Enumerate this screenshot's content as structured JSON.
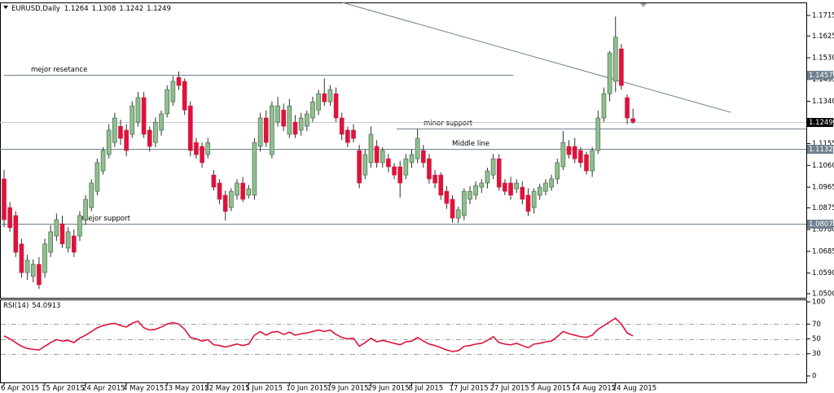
{
  "chart_data": [
    {
      "type": "candlestick",
      "title": "EURUSD,Daily",
      "categories": [
        "6 Apr 2015",
        null,
        null,
        null,
        null,
        null,
        null,
        "15 Apr 2015",
        null,
        null,
        null,
        null,
        null,
        null,
        "24 Apr 2015",
        null,
        null,
        null,
        null,
        null,
        null,
        "4 May 2015",
        null,
        null,
        null,
        null,
        null,
        null,
        "13 May 2015",
        null,
        null,
        null,
        null,
        null,
        null,
        "22 May 2015",
        null,
        null,
        null,
        null,
        null,
        null,
        "1 Jun 2015",
        null,
        null,
        null,
        null,
        null,
        null,
        "10 Jun 2015",
        null,
        null,
        null,
        null,
        null,
        null,
        "19 Jun 2015",
        null,
        null,
        null,
        null,
        null,
        null,
        "29 Jun 2015",
        null,
        null,
        null,
        null,
        null,
        null,
        "8 Jul 2015",
        null,
        null,
        null,
        null,
        null,
        null,
        "17 Jul 2015",
        null,
        null,
        null,
        null,
        null,
        null,
        "27 Jul 2015",
        null,
        null,
        null,
        null,
        null,
        null,
        "5 Aug 2015",
        null,
        null,
        null,
        null,
        null,
        null,
        "14 Aug 2015",
        null,
        null,
        null,
        null,
        null,
        null,
        "24 Aug 2015",
        null,
        null,
        null
      ],
      "open": [
        1.1001,
        1.0876,
        1.0841,
        1.0717,
        1.0592,
        1.0575,
        1.0628,
        1.0592,
        1.0681,
        1.0752,
        1.0805,
        1.0699,
        1.0752,
        1.0752,
        1.0823,
        1.0876,
        1.0947,
        1.1036,
        1.1107,
        1.116,
        1.1231,
        1.1214,
        1.1196,
        1.1249,
        1.1356,
        1.1214,
        1.116,
        1.1214,
        1.1285,
        1.1338,
        1.1444,
        1.1427,
        1.132,
        1.116,
        1.1143,
        1.1107,
        1.1018,
        1.0983,
        1.093,
        1.0876,
        1.093,
        1.0983,
        1.093,
        1.093,
        1.1143,
        1.1267,
        1.1107,
        1.1249,
        1.1302,
        1.1196,
        1.1249,
        1.1214,
        1.1231,
        1.1267,
        1.1302,
        1.1373,
        1.1338,
        1.1373,
        1.1267,
        1.1214,
        1.1214,
        1.1125,
        1.1018,
        1.1072,
        1.1143,
        1.1072,
        1.1089,
        1.1054,
        1.1054,
        1.1018,
        1.1072,
        1.1089,
        1.1125,
        1.1089,
        1.1018,
        1.1018,
        1.0947,
        1.0912,
        1.083,
        1.0841,
        1.0912,
        1.093,
        1.0965,
        1.0983,
        1.1018,
        1.1089,
        1.0983,
        1.0983,
        1.0958,
        1.0965,
        1.093,
        1.0876,
        1.093,
        1.0947,
        1.0965,
        1.1001,
        1.1054,
        1.1143,
        1.1143,
        1.1125,
        1.1107,
        1.1036,
        1.1125,
        1.1267,
        1.1373,
        1.1427,
        1.1569,
        1.1356,
        1.1264
      ],
      "high": [
        1.104,
        1.09,
        1.086,
        1.074,
        1.067,
        1.065,
        1.066,
        1.074,
        1.08,
        1.085,
        1.084,
        1.079,
        1.078,
        1.086,
        1.093,
        1.1,
        1.109,
        1.114,
        1.124,
        1.129,
        1.126,
        1.124,
        1.134,
        1.138,
        1.138,
        1.123,
        1.127,
        1.13,
        1.141,
        1.145,
        1.147,
        1.144,
        1.134,
        1.118,
        1.116,
        1.118,
        1.104,
        1.1,
        1.095,
        1.096,
        1.1,
        1.101,
        1.0975,
        1.118,
        1.129,
        1.13,
        1.134,
        1.136,
        1.133,
        1.135,
        1.128,
        1.129,
        1.13,
        1.136,
        1.139,
        1.144,
        1.141,
        1.14,
        1.129,
        1.123,
        1.124,
        1.115,
        1.113,
        1.123,
        1.117,
        1.114,
        1.111,
        1.107,
        1.108,
        1.111,
        1.113,
        1.122,
        1.115,
        1.111,
        1.104,
        1.103,
        1.097,
        1.093,
        1.088,
        1.096,
        1.097,
        1.099,
        1.1,
        1.105,
        1.111,
        1.111,
        1.1,
        1.101,
        1.1,
        1.099,
        1.096,
        1.096,
        1.098,
        1.1,
        1.102,
        1.109,
        1.121,
        1.117,
        1.118,
        1.114,
        1.112,
        1.114,
        1.13,
        1.14,
        1.156,
        1.171,
        1.159,
        1.137,
        1.1308
      ],
      "low": [
        1.079,
        1.077,
        1.066,
        1.057,
        1.056,
        1.055,
        1.0521,
        1.057,
        1.066,
        1.073,
        1.07,
        1.068,
        1.066,
        1.073,
        1.08,
        1.086,
        1.093,
        1.102,
        1.109,
        1.114,
        1.115,
        1.11,
        1.118,
        1.123,
        1.118,
        1.112,
        1.114,
        1.119,
        1.127,
        1.132,
        1.139,
        1.128,
        1.11,
        1.109,
        1.105,
        1.109,
        1.095,
        1.089,
        1.082,
        1.086,
        1.091,
        1.09,
        1.0915,
        1.091,
        1.112,
        1.114,
        1.109,
        1.123,
        1.121,
        1.118,
        1.118,
        1.119,
        1.121,
        1.125,
        1.128,
        1.132,
        1.132,
        1.125,
        1.117,
        1.114,
        1.116,
        1.096,
        1.1,
        1.105,
        1.105,
        1.105,
        1.103,
        1.1,
        1.092,
        1.1,
        1.105,
        1.107,
        1.105,
        1.098,
        1.096,
        1.091,
        1.087,
        1.081,
        1.0808,
        1.082,
        1.089,
        1.091,
        1.094,
        1.096,
        1.1,
        1.095,
        1.093,
        1.091,
        1.094,
        1.089,
        1.084,
        1.085,
        1.091,
        1.093,
        1.095,
        1.098,
        1.104,
        1.109,
        1.107,
        1.105,
        1.102,
        1.101,
        1.111,
        1.125,
        1.134,
        1.138,
        1.139,
        1.124,
        1.1242
      ],
      "close": [
        1.0823,
        1.0788,
        1.0681,
        1.0592,
        1.0646,
        1.0628,
        1.0539,
        1.0717,
        1.077,
        1.0823,
        1.0717,
        1.077,
        1.0681,
        1.0841,
        1.0912,
        1.0983,
        1.1072,
        1.1125,
        1.1214,
        1.1267,
        1.1178,
        1.1125,
        1.132,
        1.1356,
        1.1196,
        1.1143,
        1.1249,
        1.1285,
        1.1391,
        1.1427,
        1.1409,
        1.1302,
        1.1125,
        1.1107,
        1.1072,
        1.116,
        1.0965,
        1.0912,
        1.0859,
        1.0947,
        1.0983,
        1.0912,
        1.0958,
        1.116,
        1.1267,
        1.116,
        1.132,
        1.132,
        1.1231,
        1.132,
        1.1196,
        1.1267,
        1.1285,
        1.1338,
        1.1373,
        1.1338,
        1.1391,
        1.1267,
        1.1196,
        1.116,
        1.1178,
        1.0983,
        1.1107,
        1.1196,
        1.1072,
        1.1125,
        1.1054,
        1.1018,
        1.0983,
        1.1089,
        1.1107,
        1.1178,
        1.1072,
        1.1001,
        1.0983,
        1.093,
        1.0894,
        1.083,
        1.0866,
        1.0947,
        1.0947,
        1.0972,
        1.0983,
        1.1036,
        1.1089,
        1.0965,
        1.0947,
        1.093,
        1.0983,
        1.0912,
        1.0859,
        1.0947,
        1.0965,
        1.0983,
        1.1001,
        1.1072,
        1.116,
        1.1107,
        1.1089,
        1.1072,
        1.1036,
        1.1125,
        1.1267,
        1.1373,
        1.1551,
        1.162,
        1.1409,
        1.1267,
        1.1249
      ],
      "up_color": "#8fbf8f",
      "down_color": "#dc143c",
      "wick_color": "#2f2f2f",
      "ylim": [
        1.0482,
        1.1768
      ],
      "yticks": [
        1.1715,
        1.1625,
        {
          "value": 1.153,
          "label": "1.1530"
        },
        1.1435,
        {
          "value": 1.134,
          "label": "1.1340"
        },
        {
          "value": 1.125,
          "label": "1.1250"
        },
        1.1155,
        {
          "value": 1.106,
          "label": "1.1060"
        },
        1.0965,
        1.0875,
        {
          "value": 1.078,
          "label": "1.0780"
        },
        1.0685,
        {
          "value": 1.059,
          "label": "1.0590"
        },
        {
          "value": 1.05,
          "label": "1.0500"
        }
      ],
      "levels": [
        {
          "name": "mejor resetance",
          "value": 1.1457,
          "tagged": true
        },
        {
          "name": "minor support",
          "value": 1.1221,
          "tagged": false
        },
        {
          "name": "Middle line",
          "value": 1.1132,
          "tagged": true
        },
        {
          "name": "mejor support",
          "value": 1.0807,
          "tagged": true
        }
      ],
      "level_color": "#708090",
      "grid": false
    },
    {
      "type": "line",
      "title": "RSI(14)",
      "color": "#dc143c",
      "values": [
        54,
        50,
        45,
        40,
        37,
        36,
        35,
        40,
        45,
        49,
        47,
        48,
        45,
        51,
        55,
        60,
        65,
        68,
        70,
        71,
        68,
        66,
        71,
        74,
        65,
        62,
        63,
        66,
        70,
        72,
        70,
        63,
        52,
        50,
        47,
        49,
        42,
        41,
        39,
        41,
        43,
        41,
        43,
        55,
        60,
        55,
        59,
        60,
        56,
        59,
        55,
        57,
        58,
        60,
        62,
        60,
        62,
        56,
        52,
        50,
        51,
        40,
        45,
        51,
        46,
        48,
        46,
        44,
        42,
        46,
        47,
        52,
        47,
        43,
        41,
        38,
        35,
        33,
        34,
        40,
        41,
        43,
        44,
        48,
        53,
        45,
        43,
        42,
        44,
        41,
        38,
        43,
        44,
        46,
        47,
        53,
        60,
        57,
        55,
        53,
        52,
        55,
        63,
        68,
        73,
        78,
        70,
        58,
        54.0913
      ],
      "ylim": [
        0,
        100
      ],
      "yticks": [
        0,
        30,
        50,
        70,
        100
      ],
      "grid": true
    }
  ]
}
